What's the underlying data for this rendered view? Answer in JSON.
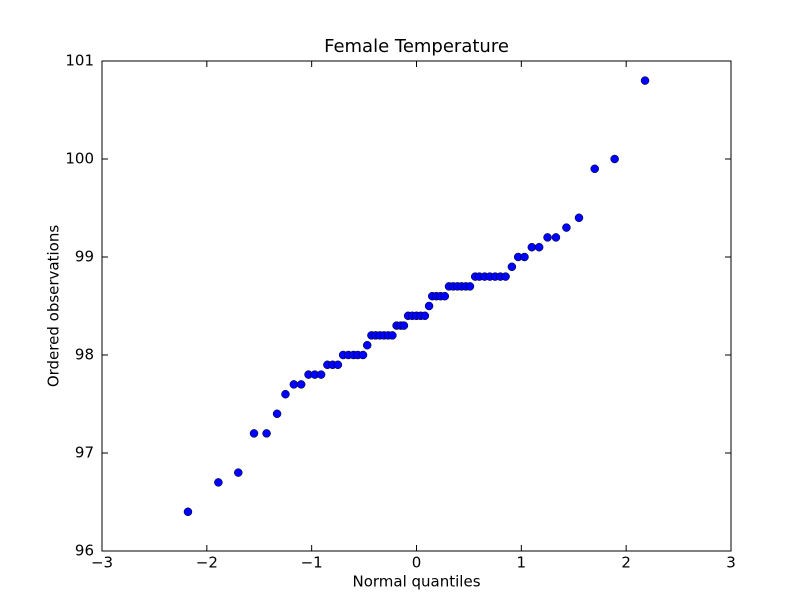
{
  "chart_data": {
    "type": "scatter",
    "title": "Female Temperature",
    "x_label": "Normal quantiles",
    "y_label": "Ordered observations",
    "x": [
      -2.18,
      -1.89,
      -1.7,
      -1.55,
      -1.43,
      -1.33,
      -1.25,
      -1.17,
      -1.1,
      -1.03,
      -0.97,
      -0.91,
      -0.85,
      -0.8,
      -0.75,
      -0.7,
      -0.65,
      -0.6,
      -0.56,
      -0.51,
      -0.47,
      -0.43,
      -0.39,
      -0.35,
      -0.31,
      -0.27,
      -0.23,
      -0.19,
      -0.15,
      -0.12,
      -0.08,
      -0.04,
      0,
      0.04,
      0.08,
      0.12,
      0.15,
      0.19,
      0.23,
      0.27,
      0.31,
      0.35,
      0.39,
      0.43,
      0.47,
      0.51,
      0.56,
      0.6,
      0.65,
      0.7,
      0.75,
      0.8,
      0.85,
      0.91,
      0.97,
      1.03,
      1.1,
      1.17,
      1.25,
      1.33,
      1.43,
      1.55,
      1.7,
      1.89,
      2.18
    ],
    "values": [
      96.4,
      96.7,
      96.8,
      97.2,
      97.2,
      97.4,
      97.6,
      97.7,
      97.7,
      97.8,
      97.8,
      97.8,
      97.9,
      97.9,
      97.9,
      98.0,
      98.0,
      98.0,
      98.0,
      98.0,
      98.1,
      98.2,
      98.2,
      98.2,
      98.2,
      98.2,
      98.2,
      98.3,
      98.3,
      98.3,
      98.4,
      98.4,
      98.4,
      98.4,
      98.4,
      98.5,
      98.6,
      98.6,
      98.6,
      98.6,
      98.7,
      98.7,
      98.7,
      98.7,
      98.7,
      98.7,
      98.8,
      98.8,
      98.8,
      98.8,
      98.8,
      98.8,
      98.8,
      98.9,
      99.0,
      99.0,
      99.1,
      99.1,
      99.2,
      99.2,
      99.3,
      99.4,
      99.9,
      100.0,
      100.8
    ],
    "color": "#0000ff",
    "xlim": [
      -3,
      3
    ],
    "xticks": [
      {
        "value": -3,
        "label": "−3"
      },
      {
        "value": -2,
        "label": "−2"
      },
      {
        "value": -1,
        "label": "−1"
      },
      0,
      1,
      2,
      3
    ],
    "ylim": [
      96,
      101
    ],
    "yticks": [
      96,
      97,
      98,
      99,
      100,
      101
    ]
  }
}
